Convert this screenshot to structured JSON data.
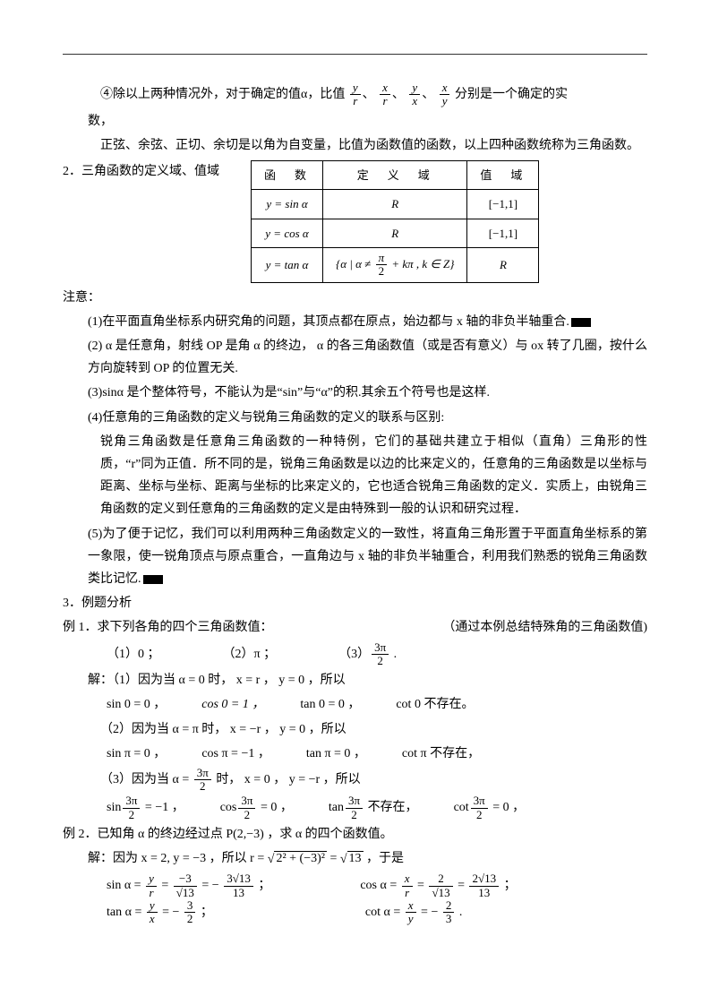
{
  "p_intro_1_pre": "④除以上两种情况外，对于确定的值α，比值",
  "p_intro_1_post": "分别是一个确定的实",
  "frac1_num": "y",
  "frac1_den": "r",
  "frac2_num": "x",
  "frac2_den": "r",
  "frac3_num": "y",
  "frac3_den": "x",
  "frac4_num": "x",
  "frac4_den": "y",
  "p_shu": "数，",
  "p_intro_2": "正弦、余弦、正切、余切是以角为自变量，比值为函数值的函数，以上四种函数统称为三角函数。",
  "sec2_label": "2．三角函数的定义域、值域",
  "th_func": "函　数",
  "th_domain": "定　义　域",
  "th_range": "值　域",
  "r1_func": "y = sin α",
  "r1_domain": "R",
  "r1_range": "[−1,1]",
  "r2_func": "y = cos α",
  "r2_domain": "R",
  "r2_range": "[−1,1]",
  "r3_func": "y = tan α",
  "r3_domain_pre": "{α | α ≠ ",
  "r3_domain_num": "π",
  "r3_domain_den": "2",
  "r3_domain_post": " + kπ , k ∈ Z}",
  "r3_range": "R",
  "notes_title": "注意：",
  "note1": "(1)在平面直角坐标系内研究角的问题，其顶点都在原点，始边都与 x 轴的非负半轴重合.",
  "note2": "(2) α 是任意角，射线 OP 是角 α 的终边， α 的各三角函数值（或是否有意义）与 ox 转了几圈，按什么方向旋转到 OP 的位置无关.",
  "note3": "(3)sinα 是个整体符号，不能认为是“sin”与“α”的积.其余五个符号也是这样.",
  "note4": "(4)任意角的三角函数的定义与锐角三角函数的定义的联系与区别:",
  "note4_body": "锐角三角函数是任意角三角函数的一种特例，它们的基础共建立于相似（直角）三角形的性质，“r”同为正值．所不同的是，锐角三角函数是以边的比来定义的，任意角的三角函数是以坐标与距离、坐标与坐标、距离与坐标的比来定义的，它也适合锐角三角函数的定义．实质上，由锐角三角函数的定义到任意角的三角函数的定义是由特殊到一般的认识和研究过程．",
  "note5": "(5)为了便于记忆，我们可以利用两种三角函数定义的一致性，将直角三角形置于平面直角坐标系的第一象限，使一锐角顶点与原点重合，一直角边与 x 轴的非负半轴重合，利用我们熟悉的锐角三角函数类比记忆.",
  "sec3_label": "3．例题分析",
  "ex1_title": "例 1．求下列各角的四个三角函数值：",
  "ex1_note": "（通过本例总结特殊角的三角函数值)",
  "ex1_item1": "（1）0 ；",
  "ex1_item2": "（2）π ；",
  "ex1_item3_pre": "（3）",
  "ex1_item3_num": "3π",
  "ex1_item3_den": "2",
  "ex1_item3_post": " .",
  "sol": "解：",
  "sol1_cond": "（1）因为当 α = 0 时， x = r ， y = 0 ，所以",
  "s1a": "sin 0 = 0 ，",
  "s1b": "cos 0 = 1 ，",
  "s1c": "tan 0 = 0 ，",
  "s1d": "cot 0 不存在。",
  "sol2_cond": "（2）因为当 α = π 时， x = −r ， y = 0 ，所以",
  "s2a": "sin π = 0 ，",
  "s2b": "cos π = −1 ，",
  "s2c": "tan π = 0 ，",
  "s2d": "cot π 不存在，",
  "sol3_cond_pre": "（3）因为当 α = ",
  "sol3_cond_num": "3π",
  "sol3_cond_den": "2",
  "sol3_cond_post": " 时， x = 0 ， y = −r ，所以",
  "s3a_pre": "sin",
  "s3a_num": "3π",
  "s3a_den": "2",
  "s3a_post": " = −1 ，",
  "s3b_pre": "cos",
  "s3b_num": "3π",
  "s3b_den": "2",
  "s3b_post": " = 0 ，",
  "s3c_pre": "tan",
  "s3c_num": "3π",
  "s3c_den": "2",
  "s3c_post": " 不存在，",
  "s3d_pre": "cot",
  "s3d_num": "3π",
  "s3d_den": "2",
  "s3d_post": " = 0 ，",
  "ex2_title": "例 2．已知角 α 的终边经过点 P(2,−3) ，求 α 的四个函数值。",
  "ex2_sol_pre": "解：因为 x = 2, y = −3 ，所以 r = ",
  "ex2_sqrt_in": "2² + (−3)²",
  "ex2_sol_mid": " = ",
  "ex2_sqrt_13": "13",
  "ex2_sol_post": " ，于是",
  "f_sin_pre": "sin α = ",
  "f_sin_n1": "y",
  "f_sin_d1": "r",
  "f_sin_eq": " = ",
  "f_sin_n2": "−3",
  "f_sin_d2": "√13",
  "f_sin_n3": "3√13",
  "f_sin_d3": "13",
  "f_sin_neg": " = − ",
  "f_cos_pre": "cos α = ",
  "f_cos_n1": "x",
  "f_cos_d1": "r",
  "f_cos_n2": "2",
  "f_cos_d2": "√13",
  "f_cos_n3": "2√13",
  "f_cos_d3": "13",
  "f_tan_pre": "tan α = ",
  "f_tan_n1": "y",
  "f_tan_d1": "x",
  "f_tan_n2": "3",
  "f_tan_d2": "2",
  "f_cot_pre": "cot α = ",
  "f_cot_n1": "x",
  "f_cot_d1": "y",
  "f_cot_n2": "2",
  "f_cot_d2": "3",
  "semi": " ；",
  "period": " ."
}
